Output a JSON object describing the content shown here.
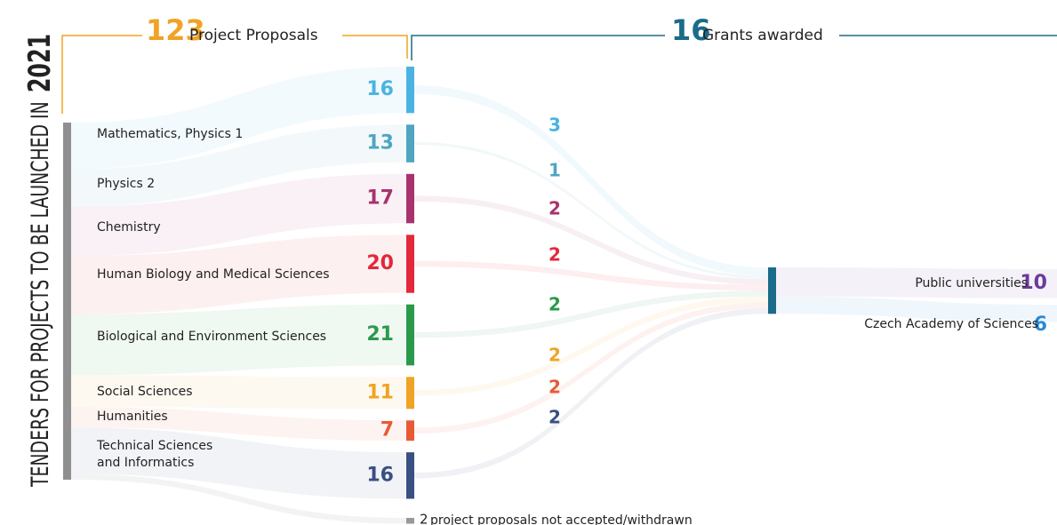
{
  "chart_data": {
    "type": "sankey",
    "title_prefix": "TENDERS FOR PROJECTS TO BE LAUNCHED IN",
    "title_year": "2021",
    "total": {
      "value": 123,
      "label": "Project Proposals",
      "color": "#f0a324"
    },
    "grants": {
      "value": 16,
      "label": "Grants awarded",
      "color": "#1b6b8a"
    },
    "categories": [
      "Mathematics, Physics 1",
      "Physics 2",
      "Chemistry",
      "Human Biology and Medical Sciences",
      "Biological and Environment Sciences",
      "Social Sciences",
      "Humanities",
      "Technical Sciences\nand Informatics"
    ],
    "proposals": [
      16,
      13,
      17,
      20,
      21,
      11,
      7,
      16
    ],
    "grants_awarded": [
      3,
      1,
      2,
      2,
      2,
      2,
      2,
      2
    ],
    "colors": [
      "#4ab3e2",
      "#4fa5c2",
      "#a8336f",
      "#e2283a",
      "#2a9a4a",
      "#f0a324",
      "#e85a36",
      "#3a4f82"
    ],
    "destinations": [
      {
        "name": "Public universities",
        "value": 10,
        "color": "#6b3a9c"
      },
      {
        "name": "Czech Academy of Sciences",
        "value": 6,
        "color": "#2a8ad8"
      }
    ],
    "withdrawn": {
      "value": 2,
      "label": "project proposals not accepted/withdrawn",
      "color": "#999999"
    }
  }
}
